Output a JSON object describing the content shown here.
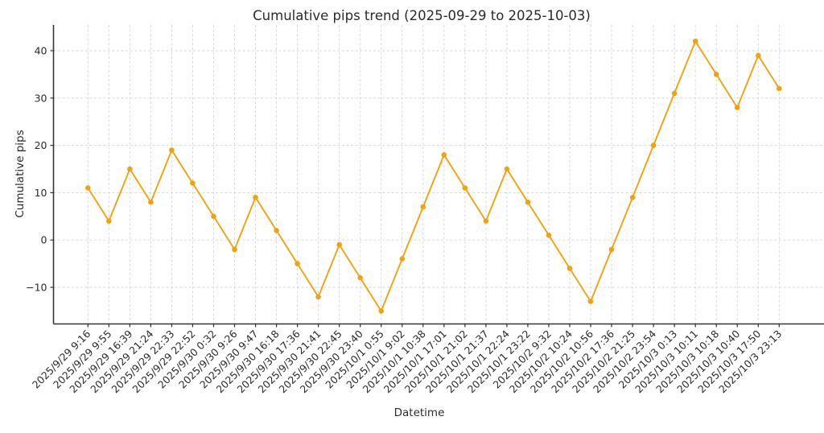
{
  "chart_data": {
    "type": "line",
    "title": "Cumulative pips trend (2025-09-29 to 2025-10-03)",
    "xlabel": "Datetime",
    "ylabel": "Cumulative pips",
    "x_tick_labels": [
      "2025/9/29 9:16",
      "2025/9/29 9:55",
      "2025/9/29 16:39",
      "2025/9/29 21:24",
      "2025/9/29 22:33",
      "2025/9/29 22:52",
      "2025/9/30 0:32",
      "2025/9/30 9:26",
      "2025/9/30 9:47",
      "2025/9/30 16:18",
      "2025/9/30 17:36",
      "2025/9/30 21:41",
      "2025/9/30 22:45",
      "2025/9/30 23:40",
      "2025/10/1 0:55",
      "2025/10/1 9:02",
      "2025/10/1 10:38",
      "2025/10/1 17:01",
      "2025/10/1 21:02",
      "2025/10/1 21:37",
      "2025/10/1 22:24",
      "2025/10/1 23:22",
      "2025/10/2 9:32",
      "2025/10/2 10:24",
      "2025/10/2 10:56",
      "2025/10/2 17:36",
      "2025/10/2 21:25",
      "2025/10/2 23:54",
      "2025/10/3 0:13",
      "2025/10/3 10:11",
      "2025/10/3 10:18",
      "2025/10/3 10:40",
      "2025/10/3 17:50",
      "2025/10/3 23:13"
    ],
    "values": [
      11,
      4,
      15,
      8,
      19,
      12,
      5,
      -2,
      9,
      2,
      -5,
      -12,
      -1,
      -8,
      -15,
      -4,
      7,
      18,
      11,
      4,
      15,
      8,
      1,
      -6,
      -13,
      -2,
      9,
      20,
      31,
      42,
      35,
      28,
      39,
      32
    ],
    "y_ticks": [
      -10,
      0,
      10,
      20,
      30,
      40
    ],
    "ylim": [
      -17.8,
      45.8
    ],
    "grid": "both-dashed",
    "legend": "none",
    "line_color": "#F0A30F",
    "marker": "circle",
    "axis_color": "#333333",
    "grid_color": "#d6d6d6",
    "text_color": "#2b2b2b",
    "background": "#ffffff"
  }
}
